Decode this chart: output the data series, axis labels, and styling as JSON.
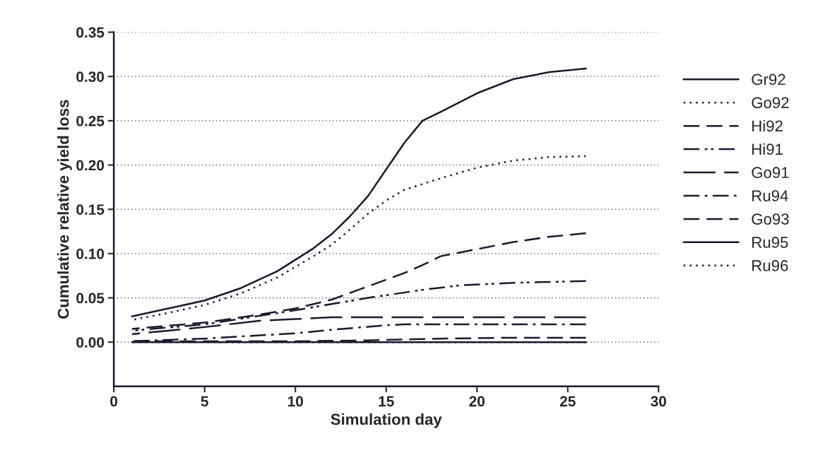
{
  "chart_data": {
    "type": "line",
    "xlabel": "Simulation day",
    "ylabel": "Cumulative relative yield loss",
    "xlim": [
      0,
      30
    ],
    "xticks": [
      0,
      5,
      10,
      15,
      20,
      25,
      30
    ],
    "ylim": [
      -0.05,
      0.35
    ],
    "yticks": [
      {
        "value": 0,
        "label": "0.00"
      },
      {
        "value": 0.05,
        "label": "0.05"
      },
      {
        "value": 0.1,
        "label": "0.10"
      },
      {
        "value": 0.15,
        "label": "0.15"
      },
      {
        "value": 0.2,
        "label": "0.20"
      },
      {
        "value": 0.25,
        "label": "0.25"
      },
      {
        "value": 0.3,
        "label": "0.30"
      },
      {
        "value": 0.35,
        "label": "0.35"
      }
    ],
    "grid": "y",
    "legend": "right",
    "marker": "none",
    "series": [
      {
        "name": "Gr92",
        "color": "#1a1a2e",
        "line_style": "solid",
        "x": [
          1,
          3,
          5,
          7,
          9,
          10,
          11,
          12,
          13,
          14,
          15,
          16,
          17,
          18,
          20,
          22,
          24,
          26
        ],
        "values": [
          0.029,
          0.038,
          0.047,
          0.061,
          0.08,
          0.093,
          0.106,
          0.122,
          0.142,
          0.165,
          0.195,
          0.225,
          0.25,
          0.26,
          0.281,
          0.297,
          0.305,
          0.309
        ]
      },
      {
        "name": "Go92",
        "color": "#1a1a2e",
        "line_style": "dotted",
        "x": [
          1,
          3,
          5,
          7,
          9,
          10,
          11,
          12,
          13,
          14,
          15,
          16,
          18,
          20,
          22,
          24,
          26
        ],
        "values": [
          0.025,
          0.033,
          0.042,
          0.055,
          0.073,
          0.085,
          0.097,
          0.11,
          0.127,
          0.145,
          0.16,
          0.172,
          0.185,
          0.197,
          0.205,
          0.209,
          0.21
        ]
      },
      {
        "name": "Hi92",
        "color": "#1a1a2e",
        "line_style": "dashed",
        "x": [
          1,
          5,
          8,
          10,
          12,
          14,
          16,
          17,
          18,
          20,
          22,
          24,
          26
        ],
        "values": [
          0.015,
          0.022,
          0.031,
          0.038,
          0.048,
          0.063,
          0.078,
          0.087,
          0.097,
          0.105,
          0.113,
          0.119,
          0.123
        ]
      },
      {
        "name": "Hi91",
        "color": "#1a1a2e",
        "line_style": "dashdotdot",
        "x": [
          1,
          5,
          10,
          14,
          17,
          19,
          22,
          26
        ],
        "values": [
          0.013,
          0.02,
          0.036,
          0.05,
          0.059,
          0.064,
          0.067,
          0.069
        ]
      },
      {
        "name": "Go91",
        "color": "#1a1a2e",
        "line_style": "longdash",
        "x": [
          1,
          3,
          5,
          8,
          10,
          12,
          14,
          26
        ],
        "values": [
          0.009,
          0.013,
          0.017,
          0.024,
          0.026,
          0.028,
          0.028,
          0.028
        ]
      },
      {
        "name": "Ru94",
        "color": "#1a1a2e",
        "line_style": "dashdot",
        "x": [
          1,
          5,
          10,
          12,
          15,
          16,
          26
        ],
        "values": [
          0.001,
          0.004,
          0.01,
          0.014,
          0.019,
          0.02,
          0.02
        ]
      },
      {
        "name": "Go93",
        "color": "#1a1a2e",
        "line_style": "dashed",
        "x": [
          1,
          10,
          14,
          18,
          22,
          26
        ],
        "values": [
          0.001,
          0.001,
          0.002,
          0.004,
          0.005,
          0.005
        ]
      },
      {
        "name": "Ru95",
        "color": "#1a1a2e",
        "line_style": "solid",
        "x": [
          1,
          26
        ],
        "values": [
          0,
          0
        ]
      },
      {
        "name": "Ru96",
        "color": "#1a1a2e",
        "line_style": "dotted",
        "x": [
          1,
          26
        ],
        "values": [
          0,
          0
        ]
      }
    ]
  }
}
